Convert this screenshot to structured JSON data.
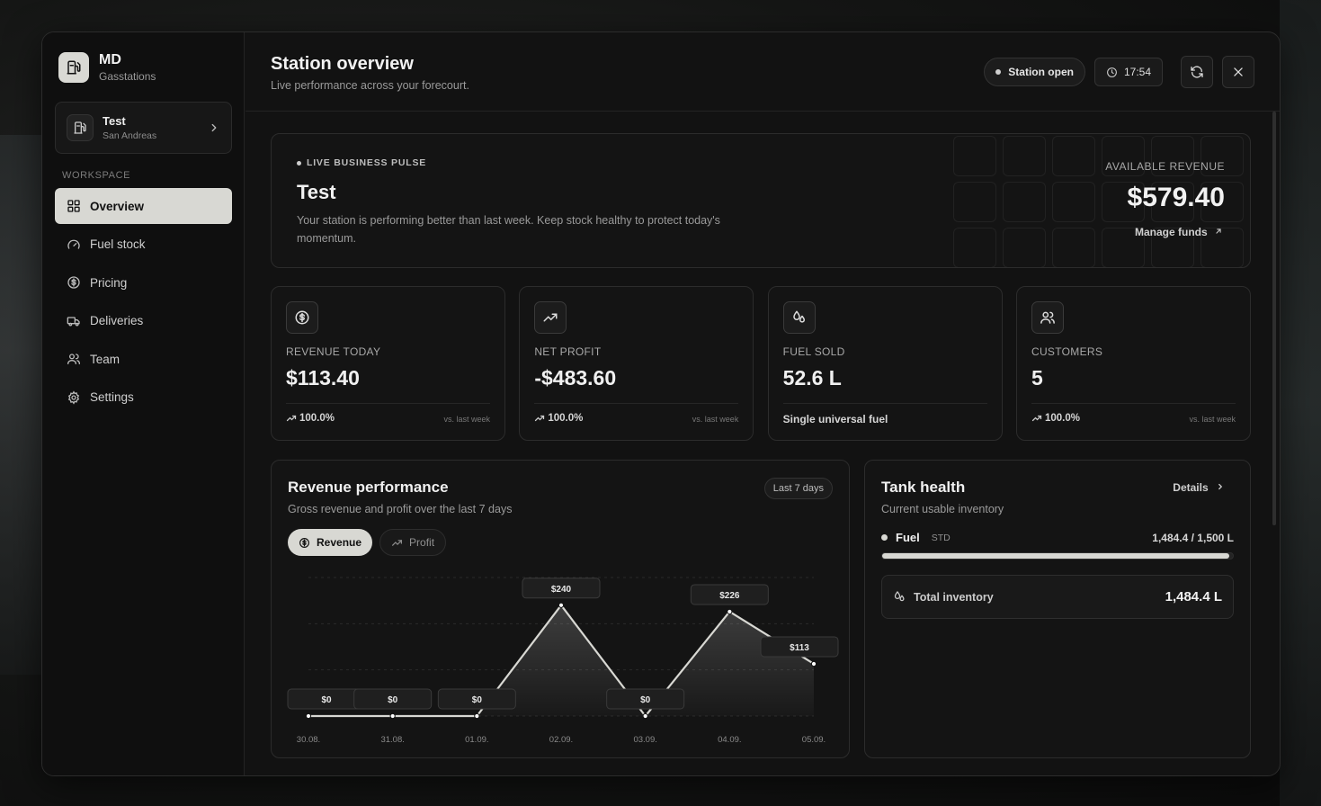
{
  "brand": {
    "name": "MD",
    "subtitle": "Gasstations"
  },
  "station": {
    "name": "Test",
    "location": "San Andreas"
  },
  "sidebar": {
    "section_label": "WORKSPACE",
    "items": [
      {
        "label": "Overview",
        "icon": "grid-icon",
        "active": true
      },
      {
        "label": "Fuel stock",
        "icon": "gauge-icon",
        "active": false
      },
      {
        "label": "Pricing",
        "icon": "dollar-circle-icon",
        "active": false
      },
      {
        "label": "Deliveries",
        "icon": "truck-icon",
        "active": false
      },
      {
        "label": "Team",
        "icon": "users-icon",
        "active": false
      },
      {
        "label": "Settings",
        "icon": "gear-icon",
        "active": false
      }
    ]
  },
  "header": {
    "title": "Station overview",
    "subtitle": "Live performance across your forecourt.",
    "status": "Station open",
    "time": "17:54"
  },
  "pulse": {
    "tag": "LIVE BUSINESS PULSE",
    "title": "Test",
    "description": "Your station is performing better than last week. Keep stock healthy to protect today's momentum.",
    "available_label": "AVAILABLE REVENUE",
    "available_value": "$579.40",
    "manage_link": "Manage funds"
  },
  "kpis": [
    {
      "label": "REVENUE TODAY",
      "value": "$113.40",
      "trend": "100.0%",
      "vs": "vs. last week",
      "icon": "dollar-circle-icon"
    },
    {
      "label": "NET PROFIT",
      "value": "-$483.60",
      "trend": "100.0%",
      "vs": "vs. last week",
      "icon": "trend-up-icon"
    },
    {
      "label": "FUEL SOLD",
      "value": "52.6 L",
      "note": "Single universal fuel",
      "icon": "droplets-icon"
    },
    {
      "label": "CUSTOMERS",
      "value": "5",
      "trend": "100.0%",
      "vs": "vs. last week",
      "icon": "users-icon"
    }
  ],
  "revenue": {
    "title": "Revenue performance",
    "subtitle": "Gross revenue and profit over the last 7 days",
    "range": "Last 7 days",
    "toggles": {
      "revenue": "Revenue",
      "profit": "Profit"
    }
  },
  "chart_data": {
    "type": "area",
    "categories": [
      "30.08.",
      "31.08.",
      "01.09.",
      "02.09.",
      "03.09.",
      "04.09.",
      "05.09."
    ],
    "series": [
      {
        "name": "Revenue",
        "values": [
          0,
          0,
          0,
          240,
          0,
          226,
          113
        ]
      }
    ],
    "data_labels": [
      "$0",
      "$0",
      "$0",
      "$240",
      "$0",
      "$226",
      "$113"
    ],
    "ylim": [
      0,
      300
    ],
    "grid": true
  },
  "tank": {
    "title": "Tank health",
    "subtitle": "Current usable inventory",
    "details": "Details",
    "fuel_name": "Fuel",
    "fuel_grade": "STD",
    "amount": "1,484.4 / 1,500 L",
    "fill_fraction": 0.9896,
    "total_label": "Total inventory",
    "total_value": "1,484.4 L"
  }
}
